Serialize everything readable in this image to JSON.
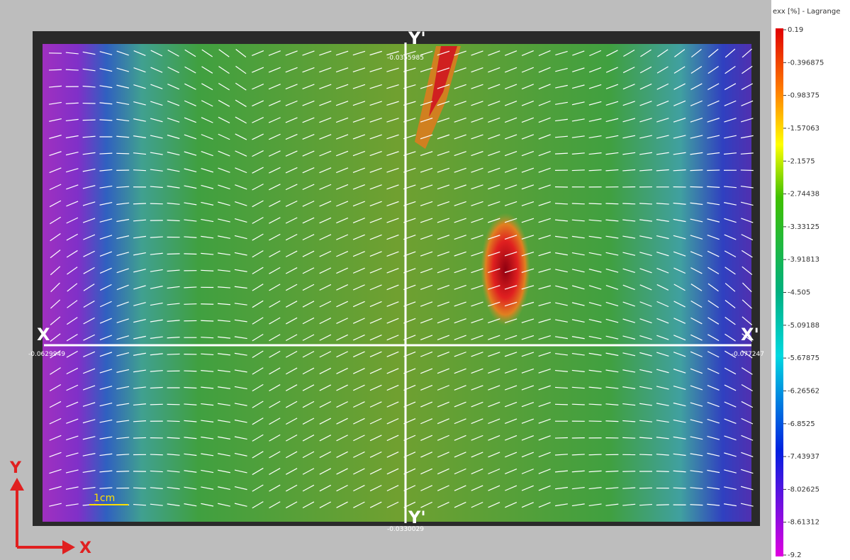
{
  "colorbar": {
    "title": "exx [%] - Lagrange",
    "ticks": [
      0.19,
      -0.396875,
      -0.98375,
      -1.57063,
      -2.1575,
      -2.74438,
      -3.33125,
      -3.91813,
      -4.505,
      -5.09188,
      -5.67875,
      -6.26562,
      -6.8525,
      -7.43937,
      -8.02625,
      -8.61312,
      -9.2
    ]
  },
  "sections": {
    "x_start": {
      "label": "X",
      "value": -0.0629949
    },
    "x_end": {
      "label": "X'",
      "value": -0.077247
    },
    "y_top": {
      "label": "Y'",
      "value": -0.0355985
    },
    "y_bottom": {
      "label": "Y'",
      "value": -0.0330029
    }
  },
  "scale_bar": "1cm",
  "axes": {
    "y": "Y",
    "x": "X"
  }
}
